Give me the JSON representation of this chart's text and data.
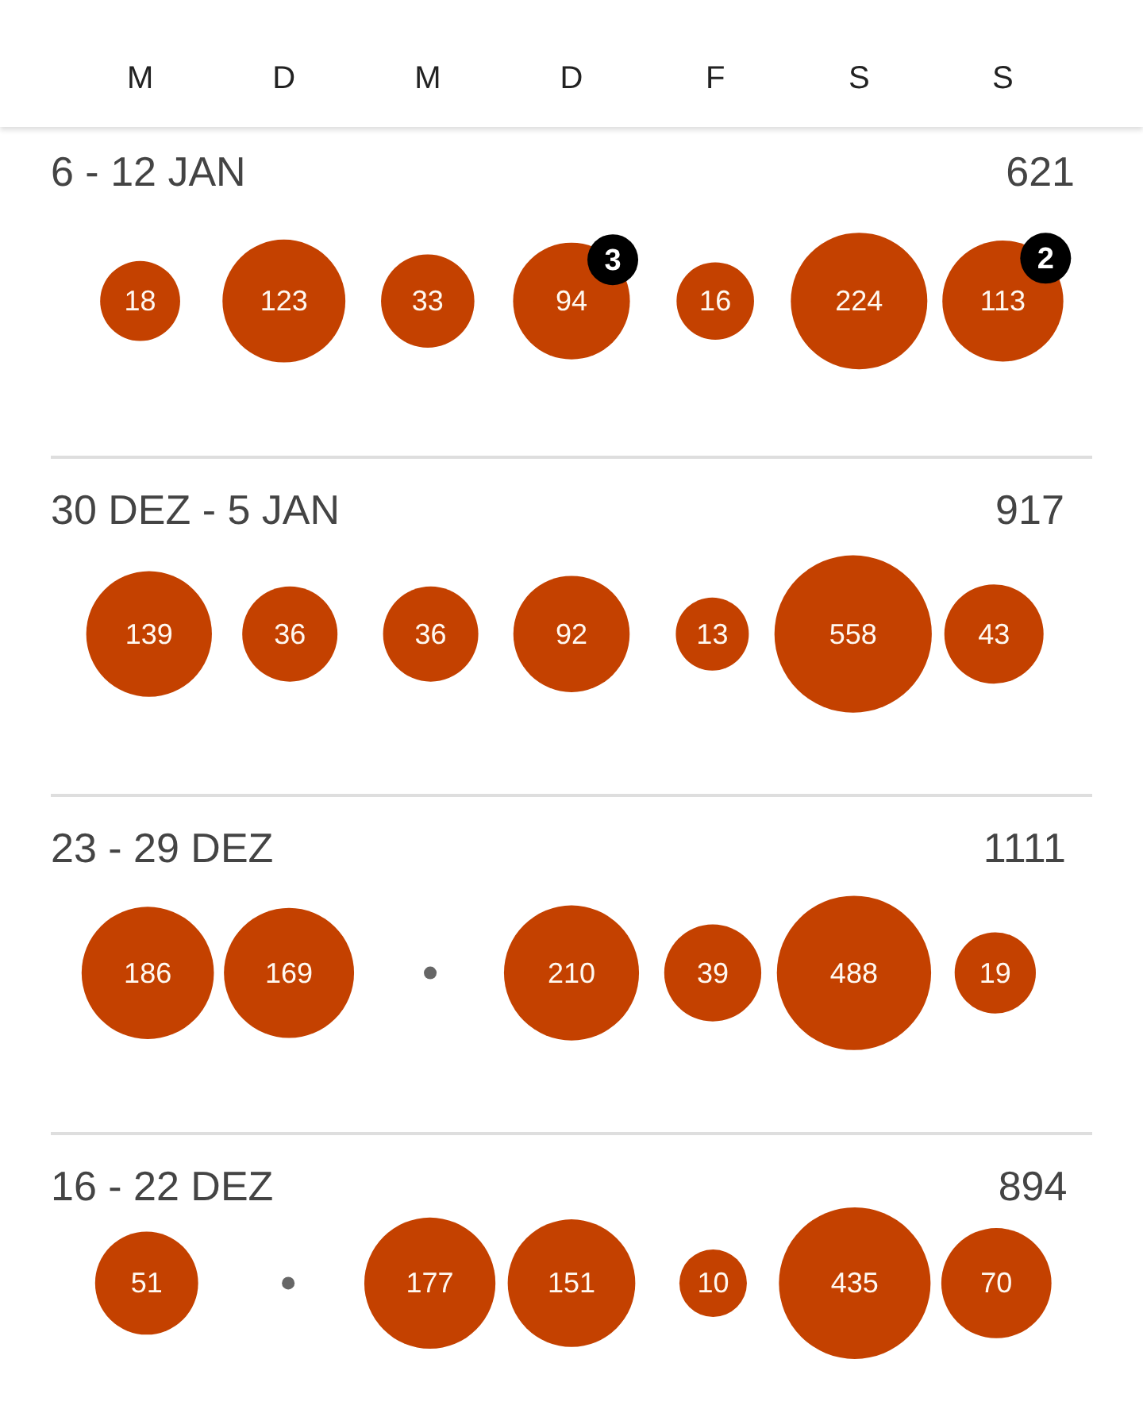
{
  "chart_data": [
    {
      "type": "other",
      "title": "6 - 12 JAN",
      "annotations": [
        "621"
      ],
      "categories": [
        "M",
        "D",
        "M",
        "D",
        "F",
        "S",
        "S"
      ],
      "series": [
        {
          "color": "#c44100",
          "values": [
            18,
            123,
            33,
            94,
            16,
            224,
            113
          ],
          "value_labels": [
            "18",
            "123",
            "33",
            "94",
            "16",
            "224",
            "113"
          ]
        },
        {
          "color": "#000000",
          "values": [
            null,
            null,
            null,
            3,
            null,
            null,
            2
          ],
          "value_labels": [
            null,
            null,
            null,
            "3",
            null,
            null,
            "2"
          ]
        }
      ]
    },
    {
      "type": "other",
      "title": "30 DEZ - 5 JAN",
      "annotations": [
        "917"
      ],
      "categories": [
        null,
        null,
        null,
        null,
        null,
        null,
        null
      ],
      "series": [
        {
          "color": "#c44100",
          "values": [
            139,
            36,
            36,
            92,
            13,
            558,
            43
          ],
          "value_labels": [
            "139",
            "36",
            "36",
            "92",
            "13",
            "558",
            "43"
          ]
        }
      ]
    },
    {
      "type": "other",
      "title": "23 - 29 DEZ",
      "annotations": [
        "1111"
      ],
      "categories": [
        null,
        null,
        null,
        null,
        null,
        null,
        null
      ],
      "series": [
        {
          "color": "#c44100",
          "values": [
            186,
            169,
            null,
            210,
            39,
            488,
            19
          ],
          "value_labels": [
            "186",
            "169",
            null,
            "210",
            "39",
            "488",
            "19"
          ]
        }
      ]
    },
    {
      "type": "other",
      "title": "16 - 22 DEZ",
      "annotations": [
        "894"
      ],
      "categories": [
        null,
        null,
        null,
        null,
        null,
        null,
        null
      ],
      "series": [
        {
          "color": "#c44100",
          "values": [
            51,
            null,
            177,
            151,
            10,
            435,
            70
          ],
          "value_labels": [
            "51",
            null,
            "177",
            "151",
            "10",
            "435",
            "70"
          ]
        }
      ]
    }
  ]
}
